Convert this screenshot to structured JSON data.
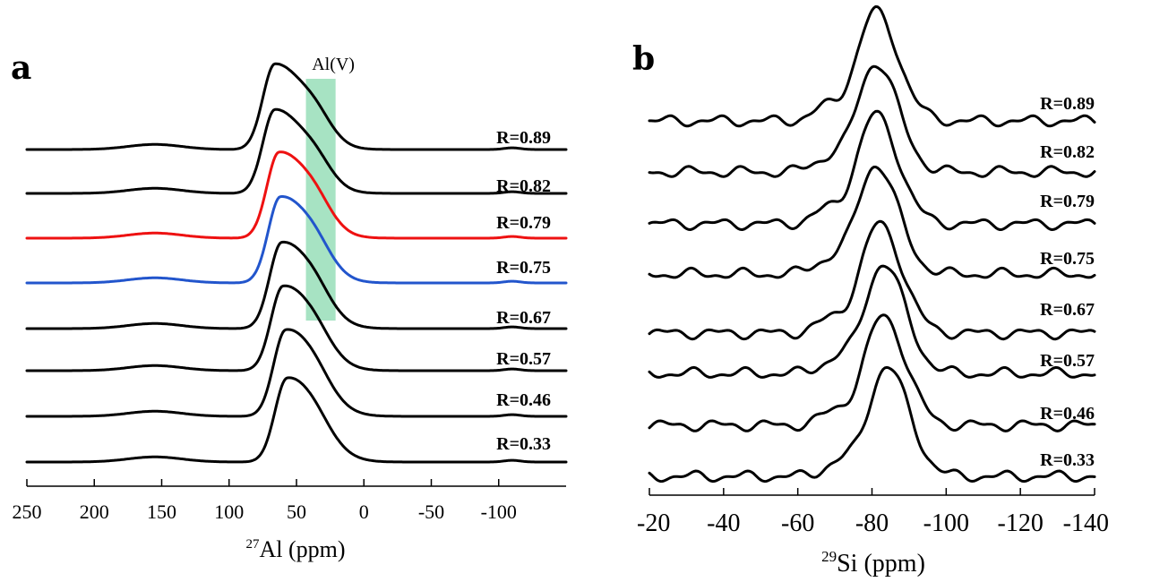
{
  "chart_data": [
    {
      "panel": "a",
      "type": "line",
      "xlabel_sup": "27",
      "xlabel_main": "Al (ppm)",
      "xlim": [
        250,
        -150
      ],
      "xticks": [
        250,
        200,
        150,
        100,
        50,
        0,
        -50,
        -100
      ],
      "xtick_labels": [
        "250",
        "200",
        "150",
        "100",
        "50",
        "0",
        "-50",
        "-100"
      ],
      "annotation": {
        "text": "Al(V)",
        "x_from": 43,
        "x_to": 21,
        "color": "#a7e3c3"
      },
      "series": [
        {
          "name": "R=0.89",
          "color": "#000000",
          "peak_ppm": 66,
          "peak_height": 1.0,
          "shoulder": 0.45
        },
        {
          "name": "R=0.82",
          "color": "#000000",
          "peak_ppm": 66,
          "peak_height": 0.98,
          "shoulder": 0.42
        },
        {
          "name": "R=0.79",
          "color": "#ee1111",
          "peak_ppm": 63,
          "peak_height": 1.0,
          "shoulder": 0.4
        },
        {
          "name": "R=0.75",
          "color": "#2255cc",
          "peak_ppm": 62,
          "peak_height": 1.0,
          "shoulder": 0.38
        },
        {
          "name": "R=0.67",
          "color": "#000000",
          "peak_ppm": 61,
          "peak_height": 1.0,
          "shoulder": 0.34
        },
        {
          "name": "R=0.57",
          "color": "#000000",
          "peak_ppm": 60,
          "peak_height": 0.98,
          "shoulder": 0.3
        },
        {
          "name": "R=0.46",
          "color": "#000000",
          "peak_ppm": 58,
          "peak_height": 1.0,
          "shoulder": 0.26
        },
        {
          "name": "R=0.33",
          "color": "#000000",
          "peak_ppm": 57,
          "peak_height": 0.97,
          "shoulder": 0.22
        }
      ]
    },
    {
      "panel": "b",
      "type": "line",
      "xlabel_sup": "29",
      "xlabel_main": "Si (ppm)",
      "xlim": [
        -20,
        -140
      ],
      "xticks": [
        -20,
        -40,
        -60,
        -80,
        -100,
        -120,
        -140
      ],
      "xtick_labels": [
        "-20",
        "-40",
        "-60",
        "-80",
        "-100",
        "-120",
        "-140"
      ],
      "series": [
        {
          "name": "R=0.89",
          "color": "#000000",
          "peak_ppm": -81,
          "peak_height": 1.0
        },
        {
          "name": "R=0.82",
          "color": "#000000",
          "peak_ppm": -81,
          "peak_height": 1.0
        },
        {
          "name": "R=0.79",
          "color": "#000000",
          "peak_ppm": -81,
          "peak_height": 1.0
        },
        {
          "name": "R=0.75",
          "color": "#000000",
          "peak_ppm": -81,
          "peak_height": 1.0
        },
        {
          "name": "R=0.67",
          "color": "#000000",
          "peak_ppm": -82,
          "peak_height": 1.0
        },
        {
          "name": "R=0.57",
          "color": "#000000",
          "peak_ppm": -83,
          "peak_height": 1.0
        },
        {
          "name": "R=0.46",
          "color": "#000000",
          "peak_ppm": -83,
          "peak_height": 1.0
        },
        {
          "name": "R=0.33",
          "color": "#000000",
          "peak_ppm": -84,
          "peak_height": 1.0
        }
      ]
    }
  ],
  "panels": {
    "a": "a",
    "b": "b"
  }
}
